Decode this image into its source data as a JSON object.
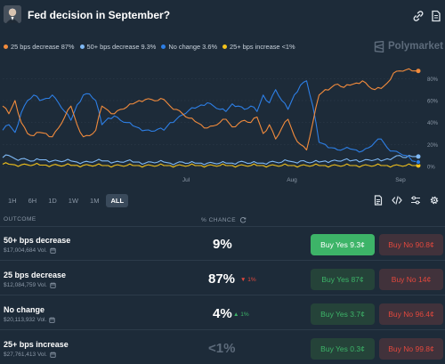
{
  "header": {
    "title": "Fed decision in September?",
    "icons": [
      "link-icon",
      "document-icon"
    ]
  },
  "brand": {
    "name": "Polymarket",
    "icon": "polymarket-logo-icon"
  },
  "legend": [
    {
      "label": "25 bps decrease 87%",
      "color": "#f28b3c"
    },
    {
      "label": "50+ bps decrease 9.3%",
      "color": "#7fb9f5"
    },
    {
      "label": "No change 3.6%",
      "color": "#2d7fe6"
    },
    {
      "label": "25+ bps increase <1%",
      "color": "#f3c21b"
    }
  ],
  "chart_data": {
    "type": "line",
    "x_tick_labels": [
      "Jul",
      "Aug",
      "Sep"
    ],
    "y_tick_labels": [
      "80%",
      "60%",
      "40%",
      "20%",
      "0%"
    ],
    "ylim": [
      0,
      90
    ],
    "grid": true,
    "legend_position": "top-left",
    "series": [
      {
        "name": "25 bps decrease",
        "color": "#f28b3c",
        "values": [
          55,
          48,
          60,
          40,
          30,
          28,
          31,
          30,
          27,
          35,
          45,
          55,
          38,
          27,
          28,
          33,
          55,
          51,
          48,
          52,
          54,
          57,
          60,
          61,
          61,
          60,
          61,
          55,
          52,
          48,
          44,
          41,
          38,
          35,
          37,
          40,
          43,
          36,
          39,
          42,
          40,
          45,
          30,
          38,
          25,
          35,
          43,
          28,
          20,
          15,
          40,
          65,
          70,
          72,
          75,
          72,
          74,
          76,
          78,
          73,
          70,
          71,
          76,
          85,
          87,
          88,
          87,
          87
        ]
      },
      {
        "name": "50+ bps decrease",
        "color": "#7fb9f5",
        "values": [
          8,
          10,
          7,
          7,
          6,
          5,
          6,
          6,
          5,
          5,
          5,
          5,
          4,
          4,
          4,
          5,
          5,
          5,
          4,
          4,
          5,
          4,
          4,
          3,
          4,
          4,
          4,
          3,
          3,
          4,
          3,
          3,
          3,
          3,
          3,
          3,
          3,
          3,
          4,
          4,
          3,
          3,
          3,
          4,
          4,
          4,
          5,
          4,
          5,
          4,
          4,
          4,
          5,
          5,
          5,
          6,
          5,
          6,
          5,
          6,
          6,
          5,
          7,
          8,
          10,
          8,
          9,
          9
        ]
      },
      {
        "name": "No change",
        "color": "#2d7fe6",
        "values": [
          33,
          38,
          31,
          49,
          60,
          65,
          60,
          62,
          65,
          58,
          50,
          42,
          56,
          65,
          66,
          60,
          38,
          44,
          46,
          42,
          40,
          37,
          35,
          33,
          32,
          34,
          33,
          40,
          43,
          47,
          51,
          53,
          56,
          58,
          55,
          52,
          50,
          57,
          55,
          52,
          55,
          50,
          65,
          58,
          70,
          60,
          52,
          65,
          74,
          78,
          55,
          22,
          20,
          17,
          15,
          16,
          16,
          15,
          14,
          17,
          22,
          25,
          17,
          14,
          12,
          10,
          5,
          4
        ]
      },
      {
        "name": "25+ bps increase",
        "color": "#f3c21b",
        "values": [
          2,
          2,
          1.5,
          1.5,
          1.5,
          1.5,
          1.2,
          1.2,
          1.2,
          1,
          1,
          1,
          1,
          1,
          1,
          1,
          0.8,
          0.8,
          0.8,
          0.8,
          0.8,
          0.8,
          0.8,
          0.8,
          0.8,
          0.8,
          0.8,
          0.8,
          0.8,
          0.8,
          0.8,
          0.8,
          0.8,
          0.8,
          0.8,
          0.8,
          0.8,
          0.8,
          0.8,
          0.8,
          0.8,
          0.8,
          0.8,
          0.8,
          0.8,
          0.8,
          0.8,
          0.8,
          0.8,
          0.8,
          0.8,
          0.8,
          0.8,
          0.8,
          0.8,
          0.8,
          0.8,
          0.8,
          0.8,
          0.8,
          0.8,
          0.8,
          0.8,
          0.8,
          0.8,
          0.8,
          0.8,
          0.8
        ]
      }
    ]
  },
  "range_tabs": [
    {
      "label": "1H",
      "active": false
    },
    {
      "label": "6H",
      "active": false
    },
    {
      "label": "1D",
      "active": false
    },
    {
      "label": "1W",
      "active": false
    },
    {
      "label": "1M",
      "active": false
    },
    {
      "label": "ALL",
      "active": true
    }
  ],
  "tools": [
    "document-icon",
    "code-icon",
    "sliders-icon",
    "gear-icon"
  ],
  "table_head": {
    "outcome": "OUTCOME",
    "chance": "% CHANCE",
    "chance_icon": "refresh-icon"
  },
  "outcomes": [
    {
      "name": "50+ bps decrease",
      "volume": "$17,004,684 Vol.",
      "chance": "9%",
      "delta": "",
      "delta_dir": "",
      "yes": "Buy Yes 9.3¢",
      "no": "Buy No 90.8¢",
      "yes_solid": true
    },
    {
      "name": "25 bps decrease",
      "volume": "$12,084,759 Vol.",
      "chance": "87%",
      "delta": "1%",
      "delta_dir": "down",
      "yes": "Buy Yes 87¢",
      "no": "Buy No 14¢",
      "yes_solid": false
    },
    {
      "name": "No change",
      "volume": "$20,113,932 Vol.",
      "chance": "4%",
      "delta": "1%",
      "delta_dir": "up",
      "yes": "Buy Yes 3.7¢",
      "no": "Buy No 96.4¢",
      "yes_solid": false
    },
    {
      "name": "25+ bps increase",
      "volume": "$27,761,413 Vol.",
      "chance": "<1%",
      "delta": "",
      "delta_dir": "",
      "yes": "Buy Yes 0.3¢",
      "no": "Buy No 99.8¢",
      "yes_solid": false
    }
  ]
}
